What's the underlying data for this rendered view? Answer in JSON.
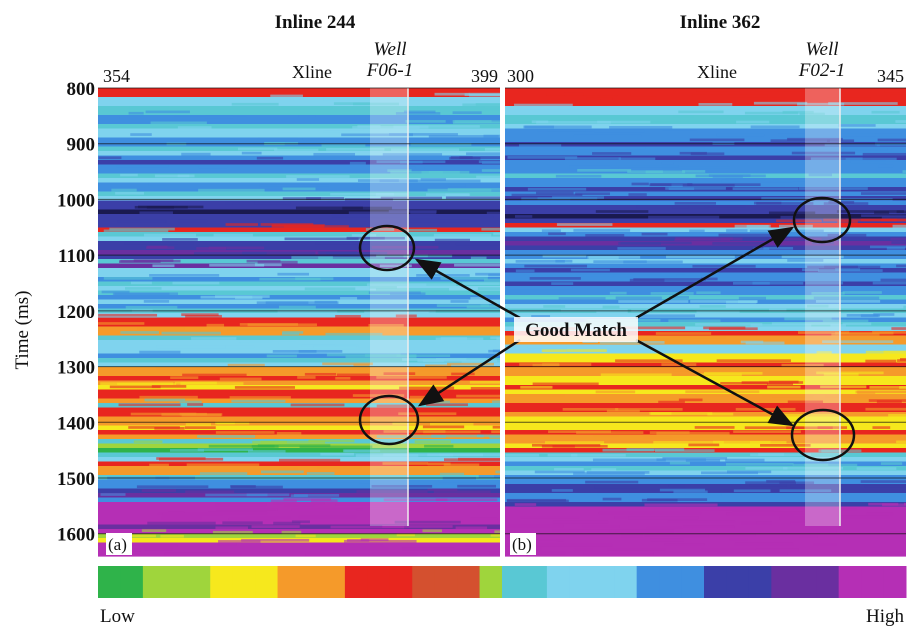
{
  "figure": {
    "panels": [
      {
        "title": "Inline 244",
        "xline_start": "354",
        "xline_label": "Xline",
        "xline_end": "399",
        "well_label": "Well",
        "well_name": "F06-1",
        "panel_label": "(a)"
      },
      {
        "title": "Inline 362",
        "xline_start": "300",
        "xline_label": "Xline",
        "xline_end": "345",
        "well_label": "Well",
        "well_name": "F02-1",
        "panel_label": "(b)"
      }
    ],
    "y_axis": {
      "label": "Time (ms)",
      "ylim": [
        800,
        1640
      ],
      "yticks": [
        800,
        900,
        1000,
        1100,
        1200,
        1300,
        1400,
        1500,
        1600
      ]
    },
    "annotation": "Good Match",
    "colorbar": {
      "low": "Low",
      "high": "High"
    }
  }
}
